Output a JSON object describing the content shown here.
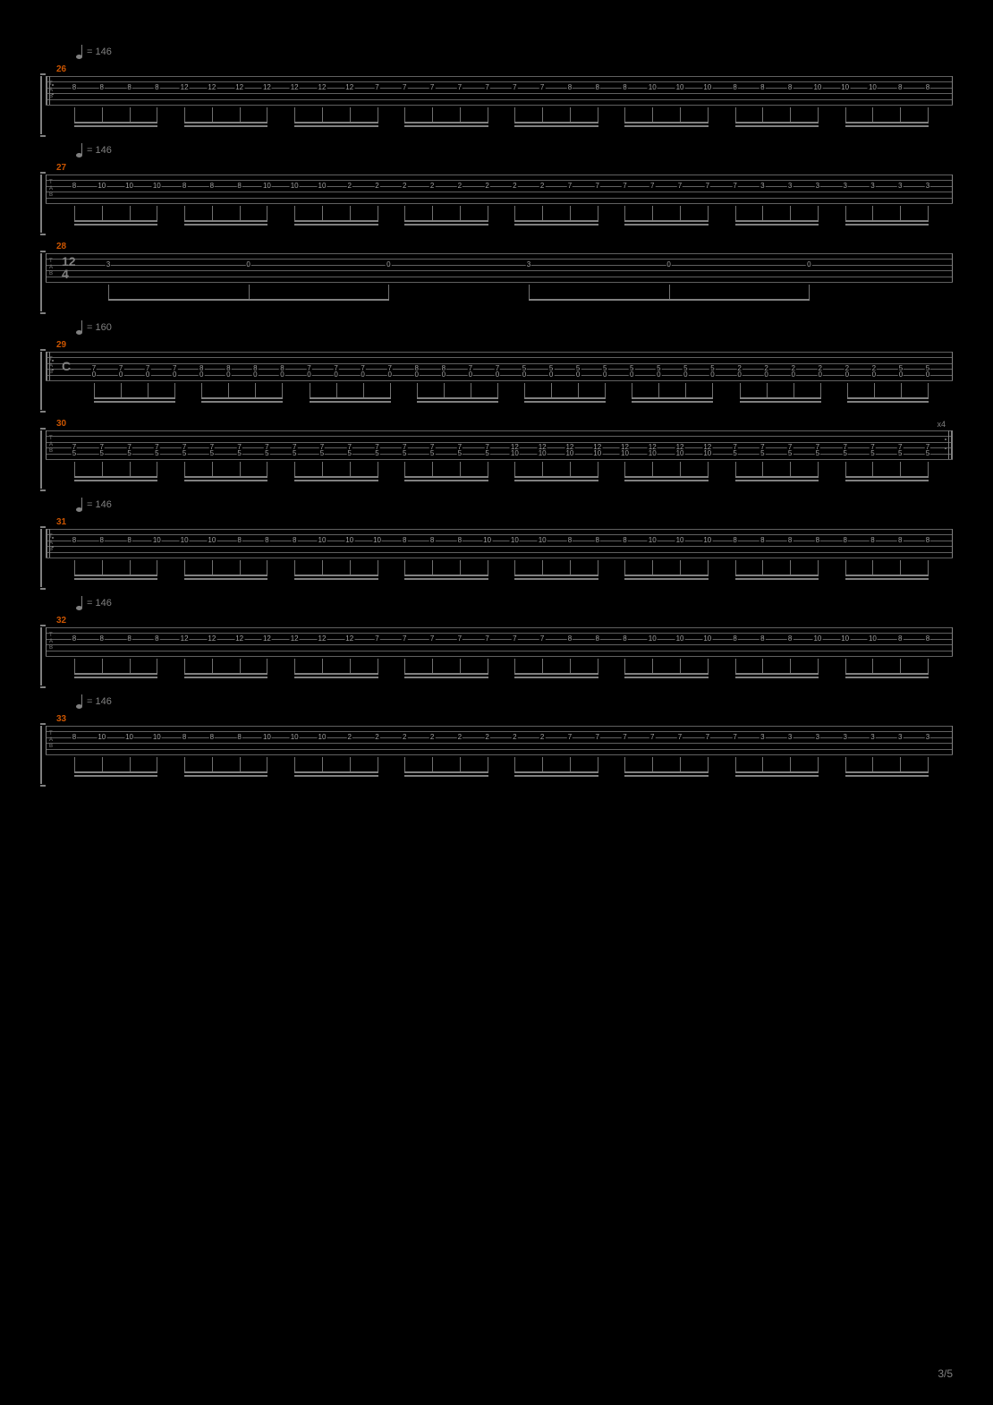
{
  "page_number": "3/5",
  "colors": {
    "background": "#000000",
    "staff_line": "#606060",
    "text": "#808080",
    "note": "#a0a0a0",
    "measure_num": "#cc5500"
  },
  "tab_strings": [
    "T",
    "A",
    "B"
  ],
  "systems": [
    {
      "tempo": "= 146",
      "measure": "26",
      "time_sig": null,
      "repeat_start": true,
      "repeat_end": false,
      "repeat_count": null,
      "note_rows": [
        {
          "string": 2,
          "frets": [
            "8",
            "8",
            "8",
            "8",
            "12",
            "12",
            "12",
            "12",
            "12",
            "12",
            "12",
            "7",
            "7",
            "7",
            "7",
            "7",
            "7",
            "7",
            "8",
            "8",
            "8",
            "10",
            "10",
            "10",
            "8",
            "8",
            "8",
            "10",
            "10",
            "10",
            "8",
            "8"
          ]
        }
      ],
      "groups": 8,
      "per_group": 4
    },
    {
      "tempo": "= 146",
      "measure": "27",
      "time_sig": null,
      "repeat_start": false,
      "repeat_end": false,
      "repeat_count": null,
      "note_rows": [
        {
          "string": 2,
          "frets": [
            "8",
            "10",
            "10",
            "10",
            "8",
            "8",
            "8",
            "10",
            "10",
            "10",
            "2",
            "2",
            "2",
            "2",
            "2",
            "2",
            "2",
            "2",
            "7",
            "7",
            "7",
            "7",
            "7",
            "7",
            "7",
            "3",
            "3",
            "3",
            "3",
            "3",
            "3",
            "3"
          ]
        }
      ],
      "groups": 8,
      "per_group": 4
    },
    {
      "tempo": null,
      "measure": "28",
      "time_sig": [
        "12",
        "4"
      ],
      "repeat_start": false,
      "repeat_end": false,
      "repeat_count": null,
      "note_rows": [
        {
          "string": 2,
          "frets": [
            "3",
            "0",
            "0",
            "3",
            "0",
            "0"
          ]
        }
      ],
      "groups": 2,
      "per_group": 3,
      "sparse": true
    },
    {
      "tempo": "= 160",
      "measure": "29",
      "time_sig": [
        "C",
        ""
      ],
      "repeat_start": true,
      "repeat_end": false,
      "repeat_count": null,
      "note_rows": [
        {
          "string": 3,
          "frets": [
            "7",
            "7",
            "7",
            "7",
            "8",
            "8",
            "8",
            "8",
            "7",
            "7",
            "7",
            "7",
            "8",
            "8",
            "7",
            "7",
            "5",
            "5",
            "5",
            "5",
            "5",
            "5",
            "5",
            "5",
            "2",
            "2",
            "2",
            "2",
            "2",
            "2",
            "5",
            "5"
          ]
        },
        {
          "string": 4,
          "frets": [
            "0",
            "0",
            "0",
            "0",
            "0",
            "0",
            "0",
            "0",
            "0",
            "0",
            "0",
            "0",
            "0",
            "0",
            "0",
            "0",
            "0",
            "0",
            "0",
            "0",
            "0",
            "0",
            "0",
            "0",
            "0",
            "0",
            "0",
            "0",
            "0",
            "0",
            "0",
            "0"
          ]
        }
      ],
      "groups": 8,
      "per_group": 4
    },
    {
      "tempo": null,
      "measure": "30",
      "time_sig": null,
      "repeat_start": false,
      "repeat_end": true,
      "repeat_count": "x4",
      "note_rows": [
        {
          "string": 3,
          "frets": [
            "7",
            "7",
            "7",
            "7",
            "7",
            "7",
            "7",
            "7",
            "7",
            "7",
            "7",
            "7",
            "7",
            "7",
            "7",
            "7",
            "12",
            "12",
            "12",
            "12",
            "12",
            "12",
            "12",
            "12",
            "7",
            "7",
            "7",
            "7",
            "7",
            "7",
            "7",
            "7"
          ]
        },
        {
          "string": 4,
          "frets": [
            "5",
            "5",
            "5",
            "5",
            "5",
            "5",
            "5",
            "5",
            "5",
            "5",
            "5",
            "5",
            "5",
            "5",
            "5",
            "5",
            "10",
            "10",
            "10",
            "10",
            "10",
            "10",
            "10",
            "10",
            "5",
            "5",
            "5",
            "5",
            "5",
            "5",
            "5",
            "5"
          ]
        }
      ],
      "groups": 8,
      "per_group": 4
    },
    {
      "tempo": "= 146",
      "measure": "31",
      "time_sig": null,
      "repeat_start": true,
      "repeat_end": false,
      "repeat_count": null,
      "note_rows": [
        {
          "string": 2,
          "frets": [
            "8",
            "8",
            "8",
            "10",
            "10",
            "10",
            "8",
            "8",
            "8",
            "10",
            "10",
            "10",
            "8",
            "8",
            "8",
            "10",
            "10",
            "10",
            "8",
            "8",
            "8",
            "10",
            "10",
            "10",
            "8",
            "8",
            "8",
            "8",
            "8",
            "8",
            "8",
            "8"
          ]
        }
      ],
      "groups": 8,
      "per_group": 4
    },
    {
      "tempo": "= 146",
      "measure": "32",
      "time_sig": null,
      "repeat_start": false,
      "repeat_end": false,
      "repeat_count": null,
      "note_rows": [
        {
          "string": 2,
          "frets": [
            "8",
            "8",
            "8",
            "8",
            "12",
            "12",
            "12",
            "12",
            "12",
            "12",
            "12",
            "7",
            "7",
            "7",
            "7",
            "7",
            "7",
            "7",
            "8",
            "8",
            "8",
            "10",
            "10",
            "10",
            "8",
            "8",
            "8",
            "10",
            "10",
            "10",
            "8",
            "8"
          ]
        }
      ],
      "groups": 8,
      "per_group": 4
    },
    {
      "tempo": "= 146",
      "measure": "33",
      "time_sig": null,
      "repeat_start": false,
      "repeat_end": false,
      "repeat_count": null,
      "note_rows": [
        {
          "string": 2,
          "frets": [
            "8",
            "10",
            "10",
            "10",
            "8",
            "8",
            "8",
            "10",
            "10",
            "10",
            "2",
            "2",
            "2",
            "2",
            "2",
            "2",
            "2",
            "2",
            "7",
            "7",
            "7",
            "7",
            "7",
            "7",
            "7",
            "3",
            "3",
            "3",
            "3",
            "3",
            "3",
            "3"
          ]
        }
      ],
      "groups": 8,
      "per_group": 4
    }
  ]
}
